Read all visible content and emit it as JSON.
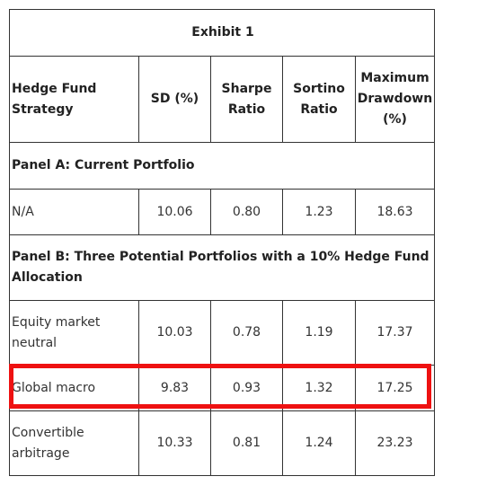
{
  "title": "Exhibit 1",
  "headers": {
    "strategy": "Hedge Fund Strategy",
    "sd": "SD (%)",
    "sharpe": "Sharpe Ratio",
    "sortino": "Sortino Ratio",
    "drawdown": "Maximum Drawdown (%)"
  },
  "panel_a": {
    "label": "Panel A: Current Portfolio",
    "rows": [
      {
        "strategy": "N/A",
        "sd": "10.06",
        "sharpe": "0.80",
        "sortino": "1.23",
        "drawdown": "18.63"
      }
    ]
  },
  "panel_b": {
    "label": "Panel B: Three Potential Portfolios with a 10% Hedge Fund Allocation",
    "rows": [
      {
        "strategy": "Equity market neutral",
        "sd": "10.03",
        "sharpe": "0.78",
        "sortino": "1.19",
        "drawdown": "17.37"
      },
      {
        "strategy": "Global macro",
        "sd": "9.83",
        "sharpe": "0.93",
        "sortino": "1.32",
        "drawdown": "17.25"
      },
      {
        "strategy": "Convertible arbitrage",
        "sd": "10.33",
        "sharpe": "0.81",
        "sortino": "1.24",
        "drawdown": "23.23"
      }
    ]
  },
  "highlight": {
    "row": "Global macro",
    "color": "#ee1111"
  }
}
